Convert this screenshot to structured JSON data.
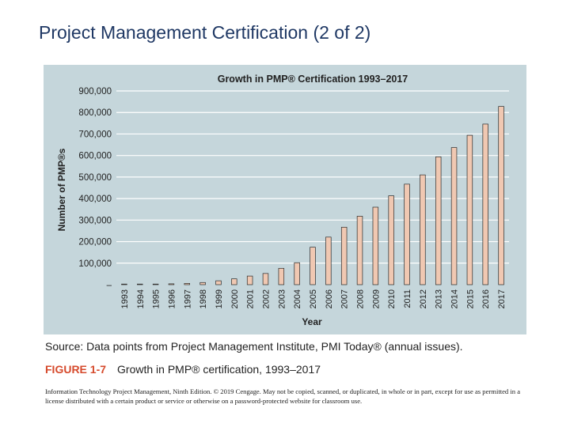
{
  "slide": {
    "title": "Project Management Certification (2 of 2)"
  },
  "chart_data": {
    "type": "bar",
    "title": "Growth in PMP® Certification 1993–2017",
    "xlabel": "Year",
    "ylabel": "Number of PMP®s",
    "ylim": [
      0,
      900000
    ],
    "yticks": [
      0,
      100000,
      200000,
      300000,
      400000,
      500000,
      600000,
      700000,
      800000,
      900000
    ],
    "ytick_labels": [
      "–",
      "100,000",
      "200,000",
      "300,000",
      "400,000",
      "500,000",
      "600,000",
      "700,000",
      "800,000",
      "900,000"
    ],
    "grid": true,
    "categories": [
      "1993",
      "1994",
      "1995",
      "1996",
      "1997",
      "1998",
      "1999",
      "2000",
      "2001",
      "2002",
      "2003",
      "2004",
      "2005",
      "2006",
      "2007",
      "2008",
      "2009",
      "2010",
      "2011",
      "2012",
      "2013",
      "2014",
      "2015",
      "2016",
      "2017"
    ],
    "values": [
      1000,
      1500,
      2500,
      4000,
      6000,
      10000,
      18000,
      27000,
      40000,
      52000,
      76000,
      102000,
      174000,
      221000,
      267000,
      318000,
      360000,
      413000,
      467000,
      510000,
      594000,
      637000,
      694000,
      746000,
      828000
    ],
    "colors": {
      "bar_fill": "#f0c8b2",
      "bar_stroke": "#2a2a2a",
      "panel_bg": "#c5d6db",
      "grid": "#ffffff",
      "text": "#222222"
    }
  },
  "caption": {
    "source": "Source: Data points from Project Management Institute, PMI Today® (annual issues).",
    "figure_label": "FIGURE 1-7",
    "figure_text": "Growth in PMP® certification, 1993–2017"
  },
  "footer": {
    "copyright": "Information Technology Project Management, Ninth Edition. © 2019 Cengage. May not be copied, scanned, or duplicated, in whole or in part, except for use as permitted in a license distributed with a certain product or service or otherwise on a password-protected website for classroom use."
  }
}
